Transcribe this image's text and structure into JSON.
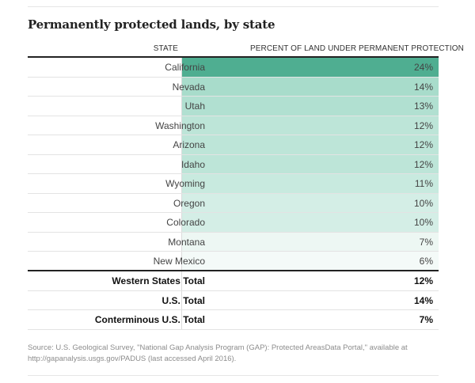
{
  "title": "Permanently protected lands, by state",
  "headers": {
    "state": "STATE",
    "percent": "PERCENT OF LAND UNDER PERMANENT PROTECTION"
  },
  "chart_data": {
    "type": "table",
    "title": "Permanently protected lands, by state",
    "columns": [
      "STATE",
      "PERCENT OF LAND UNDER PERMANENT PROTECTION"
    ],
    "rows": [
      {
        "state": "California",
        "value": 24,
        "label": "24%",
        "color": "#4fae91"
      },
      {
        "state": "Nevada",
        "value": 14,
        "label": "14%",
        "color": "#a8dccb"
      },
      {
        "state": "Utah",
        "value": 13,
        "label": "13%",
        "color": "#b1e0d1"
      },
      {
        "state": "Washington",
        "value": 12,
        "label": "12%",
        "color": "#bde5d8"
      },
      {
        "state": "Arizona",
        "value": 12,
        "label": "12%",
        "color": "#bde5d8"
      },
      {
        "state": "Idaho",
        "value": 12,
        "label": "12%",
        "color": "#bde5d8"
      },
      {
        "state": "Wyoming",
        "value": 11,
        "label": "11%",
        "color": "#c8eadf"
      },
      {
        "state": "Oregon",
        "value": 10,
        "label": "10%",
        "color": "#d4eee6"
      },
      {
        "state": "Colorado",
        "value": 10,
        "label": "10%",
        "color": "#d4eee6"
      },
      {
        "state": "Montana",
        "value": 7,
        "label": "7%",
        "color": "#edf7f3"
      },
      {
        "state": "New Mexico",
        "value": 6,
        "label": "6%",
        "color": "#f4faf8"
      }
    ],
    "totals": [
      {
        "label": "Western States Total",
        "value": 12,
        "display": "12%"
      },
      {
        "label": "U.S. Total",
        "value": 14,
        "display": "14%"
      },
      {
        "label": "Conterminous U.S. Total",
        "value": 7,
        "display": "7%"
      }
    ]
  },
  "source": "Source: U.S. Geological Survey, \"National Gap Analysis Program (GAP): Protected AreasData Portal,\" available at http://gapanalysis.usgs.gov/PADUS (last accessed April 2016)."
}
